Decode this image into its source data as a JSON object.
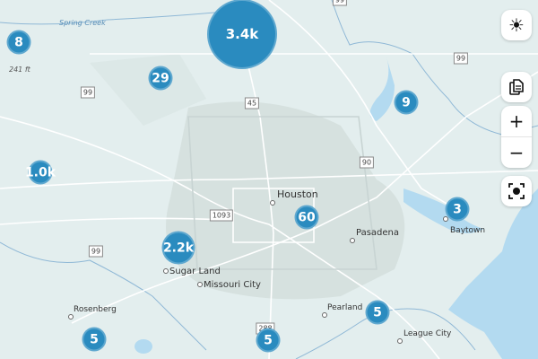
{
  "colors": {
    "land": "#e3eeee",
    "water": "#b3daf0",
    "cluster": "#2a8bbf",
    "road": "#ffffff",
    "urban": "#d7e2e0"
  },
  "clusters": [
    "8",
    "3.4k",
    "29",
    "9",
    "1.0k",
    "2.2k",
    "60",
    "3",
    "5",
    "5",
    "5"
  ],
  "cities": [
    "Houston",
    "Pasadena",
    "Sugar Land",
    "Missouri City",
    "Rosenberg",
    "Pearland",
    "League City",
    "Baytown"
  ],
  "shields": [
    "99",
    "45",
    "99",
    "90",
    "1093",
    "99",
    "288",
    "99"
  ],
  "elevation": "241 ft",
  "creek": "Spring Creek",
  "controls": {
    "theme": "sun-icon",
    "layers": "document-icon",
    "zoom_in": "+",
    "zoom_out": "−",
    "locate": "recenter-icon"
  }
}
